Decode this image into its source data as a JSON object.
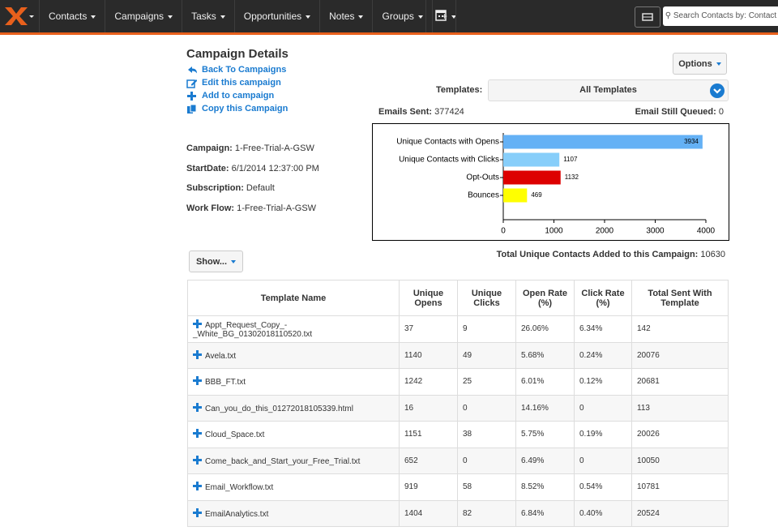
{
  "nav": {
    "items": [
      "Contacts",
      "Campaigns",
      "Tasks",
      "Opportunities",
      "Notes",
      "Groups",
      "+"
    ],
    "search_placeholder": "Search Contacts by: Contact"
  },
  "header": {
    "title": "Campaign Details",
    "links": [
      "Back To Campaigns",
      "Edit this campaign",
      "Add to campaign",
      "Copy this Campaign"
    ],
    "options": "Options"
  },
  "templates": {
    "label": "Templates:",
    "selected": "All Templates"
  },
  "emails_sent": {
    "label": "Emails Sent:",
    "value": 377424
  },
  "emails_queued": {
    "label": "Email Still Queued:",
    "value": 0
  },
  "details": [
    {
      "label": "Campaign:",
      "value": "1-Free-Trial-A-GSW"
    },
    {
      "label": "StartDate:",
      "value": "6/1/2014 12:37:00 PM"
    },
    {
      "label": "Subscription:",
      "value": "Default"
    },
    {
      "label": "Work Flow:",
      "value": "1-Free-Trial-A-GSW"
    }
  ],
  "show_button": "Show...",
  "total_unique": {
    "label": "Total Unique Contacts Added to this Campaign:",
    "value": 10630
  },
  "chart_data": {
    "type": "bar",
    "orientation": "horizontal",
    "categories": [
      "Unique Contacts with Opens",
      "Unique Contacts with Clicks",
      "Opt-Outs",
      "Bounces"
    ],
    "values": [
      3934,
      1107,
      1132,
      469
    ],
    "colors": [
      "#64b1f5",
      "#87cefa",
      "#dd0000",
      "#ffff00"
    ],
    "xlim": [
      0,
      4000
    ],
    "xticks": [
      0,
      1000,
      2000,
      3000,
      4000
    ],
    "grid": false
  },
  "table": {
    "columns": [
      "Template Name",
      "Unique Opens",
      "Unique Clicks",
      "Open Rate (%)",
      "Click Rate (%)",
      "Total Sent With Template"
    ],
    "rows": [
      [
        "Appt_Request_Copy_-_White_BG_01302018110520.txt",
        "37",
        "9",
        "26.06%",
        "6.34%",
        "142"
      ],
      [
        "Avela.txt",
        "1140",
        "49",
        "5.68%",
        "0.24%",
        "20076"
      ],
      [
        "BBB_FT.txt",
        "1242",
        "25",
        "6.01%",
        "0.12%",
        "20681"
      ],
      [
        "Can_you_do_this_01272018105339.html",
        "16",
        "0",
        "14.16%",
        "0",
        "113"
      ],
      [
        "Cloud_Space.txt",
        "1151",
        "38",
        "5.75%",
        "0.19%",
        "20026"
      ],
      [
        "Come_back_and_Start_your_Free_Trial.txt",
        "652",
        "0",
        "6.49%",
        "0",
        "10050"
      ],
      [
        "Email_Workflow.txt",
        "919",
        "58",
        "8.52%",
        "0.54%",
        "10781"
      ],
      [
        "EmailAnalytics.txt",
        "1404",
        "82",
        "6.84%",
        "0.40%",
        "20524"
      ]
    ]
  }
}
